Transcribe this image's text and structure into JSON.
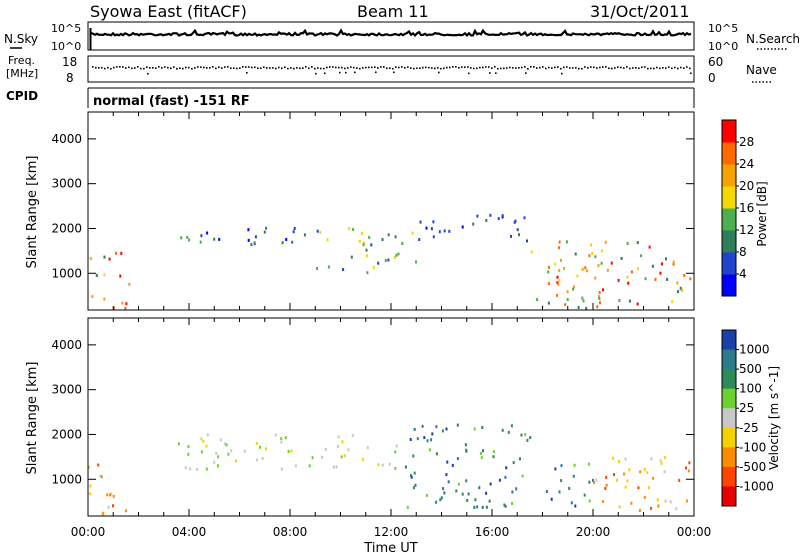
{
  "header": {
    "station": "Syowa East (fitACF)",
    "beam": "Beam 11",
    "date": "31/Oct/2011"
  },
  "noise_panel": {
    "left_label": "N.Sky",
    "right_label": "N.Search",
    "right_line_style": "dotted",
    "y_tick_labels": [
      "10^5",
      "10^0"
    ]
  },
  "freq_panel": {
    "left_label_line1": "Freq.",
    "left_label_line2": "[MHz]",
    "right_label": "Nave",
    "right_line_style": "dotted",
    "left_tick_labels": [
      "18",
      "8"
    ],
    "right_tick_labels": [
      "60",
      "0"
    ]
  },
  "cpid_panel": {
    "label": "CPID",
    "text": "normal (fast) -151 RF"
  },
  "x_axis": {
    "label": "Time UT",
    "tick_labels": [
      "00:00",
      "04:00",
      "08:00",
      "12:00",
      "16:00",
      "20:00",
      "00:00"
    ],
    "range_hours": [
      0,
      24
    ]
  },
  "chart_data": [
    {
      "type": "heatmap",
      "quantity": "power",
      "ylabel": "Slant Range [km]",
      "ylim": [
        180,
        4600
      ],
      "y_ticks": [
        1000,
        2000,
        3000,
        4000
      ],
      "y_tick_labels": [
        "1000",
        "2000",
        "3000",
        "4000"
      ],
      "colorbar": {
        "label": "Power [dB]",
        "tick_labels": [
          "4",
          "8",
          "12",
          "16",
          "20",
          "24",
          "28"
        ],
        "colors": [
          "#0000ff",
          "#2244cc",
          "#2e7d5b",
          "#4caf50",
          "#f5d800",
          "#f5a300",
          "#ff6a00",
          "#ff0000"
        ]
      },
      "regions": [
        {
          "t": [
            0.0,
            1.6
          ],
          "r": [
            180,
            1500
          ],
          "level": "mid-high"
        },
        {
          "t": [
            3.5,
            9.0
          ],
          "r": [
            1500,
            2000
          ],
          "level": "low-mid"
        },
        {
          "t": [
            9.0,
            13.0
          ],
          "r": [
            1000,
            2000
          ],
          "level": "mid"
        },
        {
          "t": [
            13.0,
            17.5
          ],
          "r": [
            1700,
            2300
          ],
          "level": "low"
        },
        {
          "t": [
            17.5,
            23.9
          ],
          "r": [
            180,
            1700
          ],
          "level": "mid-high"
        }
      ]
    },
    {
      "type": "heatmap",
      "quantity": "velocity",
      "ylabel": "Slant Range [km]",
      "ylim": [
        180,
        4600
      ],
      "y_ticks": [
        1000,
        2000,
        3000,
        4000
      ],
      "y_tick_labels": [
        "1000",
        "2000",
        "3000",
        "4000"
      ],
      "colorbar": {
        "label": "Velocity [m s^-1]",
        "tick_labels": [
          "1000",
          "500",
          "100",
          "25",
          "-25",
          "-100",
          "-500",
          "-1000"
        ],
        "colors": [
          "#1a3fa8",
          "#2d7a8a",
          "#2e8b57",
          "#6bd12e",
          "#c8c8c8",
          "#f7d000",
          "#ff8c00",
          "#ff4400",
          "#e60000"
        ]
      },
      "regions": [
        {
          "t": [
            0.0,
            1.6
          ],
          "r": [
            180,
            1500
          ],
          "level": "negative"
        },
        {
          "t": [
            3.5,
            12.5
          ],
          "r": [
            1200,
            2000
          ],
          "level": "near-zero"
        },
        {
          "t": [
            12.5,
            17.5
          ],
          "r": [
            300,
            2200
          ],
          "level": "positive"
        },
        {
          "t": [
            17.5,
            20.0
          ],
          "r": [
            300,
            1500
          ],
          "level": "positive"
        },
        {
          "t": [
            20.0,
            23.9
          ],
          "r": [
            180,
            1500
          ],
          "level": "negative"
        }
      ]
    }
  ]
}
